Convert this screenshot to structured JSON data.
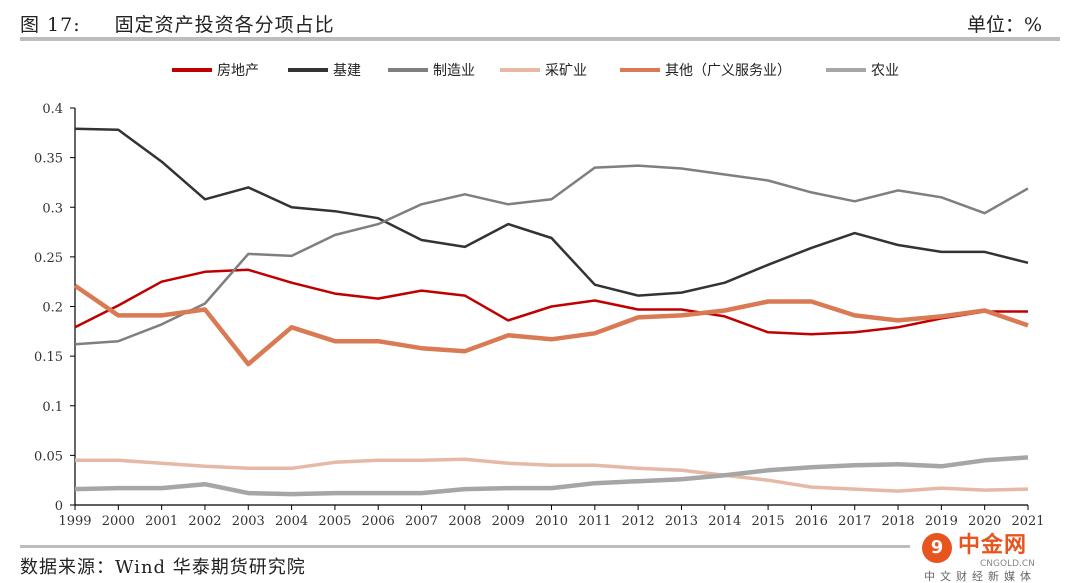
{
  "header": {
    "figure_no": "图 17:",
    "title": "固定资产投资各分项占比",
    "unit": "单位：%"
  },
  "footer": {
    "source": "数据来源：Wind  华泰期货研究院"
  },
  "watermark": {
    "logo_glyph": "9",
    "name": "中金网",
    "site": "CNGOLD.CN",
    "slogan": "中文财经新媒体"
  },
  "chart_data": {
    "type": "line",
    "title": "",
    "xlabel": "",
    "ylabel": "",
    "ylim": [
      0,
      0.4
    ],
    "yticks": [
      "0",
      "0.05",
      "0.1",
      "0.15",
      "0.2",
      "0.25",
      "0.3",
      "0.35",
      "0.4"
    ],
    "ytick_values": [
      0,
      0.05,
      0.1,
      0.15,
      0.2,
      0.25,
      0.3,
      0.35,
      0.4
    ],
    "grid": false,
    "legend_position": "top",
    "x": [
      "1999",
      "2000",
      "2001",
      "2002",
      "2003",
      "2004",
      "2005",
      "2006",
      "2007",
      "2008",
      "2009",
      "2010",
      "2011",
      "2012",
      "2013",
      "2014",
      "2015",
      "2016",
      "2017",
      "2018",
      "2019",
      "2020",
      "2021"
    ],
    "series": [
      {
        "name": "房地产",
        "color": "#c00000",
        "width": 2.5,
        "values": [
          0.179,
          0.201,
          0.225,
          0.235,
          0.237,
          0.224,
          0.213,
          0.208,
          0.216,
          0.211,
          0.186,
          0.2,
          0.206,
          0.197,
          0.197,
          0.19,
          0.174,
          0.172,
          0.174,
          0.179,
          0.188,
          0.195,
          0.195
        ]
      },
      {
        "name": "基建",
        "color": "#333333",
        "width": 2.5,
        "values": [
          0.379,
          0.378,
          0.346,
          0.308,
          0.32,
          0.3,
          0.296,
          0.289,
          0.267,
          0.26,
          0.283,
          0.269,
          0.222,
          0.211,
          0.214,
          0.224,
          0.242,
          0.259,
          0.274,
          0.262,
          0.255,
          0.255,
          0.244
        ]
      },
      {
        "name": "制造业",
        "color": "#7f7f7f",
        "width": 2.5,
        "values": [
          0.162,
          0.165,
          0.182,
          0.203,
          0.253,
          0.251,
          0.272,
          0.283,
          0.303,
          0.313,
          0.303,
          0.308,
          0.34,
          0.342,
          0.339,
          0.333,
          0.327,
          0.315,
          0.306,
          0.317,
          0.31,
          0.294,
          0.319
        ]
      },
      {
        "name": "采矿业",
        "color": "#e6b9a6",
        "width": 3.5,
        "values": [
          0.045,
          0.045,
          0.042,
          0.039,
          0.037,
          0.037,
          0.043,
          0.045,
          0.045,
          0.046,
          0.042,
          0.04,
          0.04,
          0.037,
          0.035,
          0.03,
          0.025,
          0.018,
          0.016,
          0.014,
          0.017,
          0.015,
          0.016
        ]
      },
      {
        "name": "其他（广义服务业）",
        "color": "#d97a55",
        "width": 4.5,
        "values": [
          0.221,
          0.191,
          0.191,
          0.197,
          0.142,
          0.179,
          0.165,
          0.165,
          0.158,
          0.155,
          0.171,
          0.167,
          0.173,
          0.189,
          0.191,
          0.196,
          0.205,
          0.205,
          0.191,
          0.186,
          0.19,
          0.196,
          0.181
        ]
      },
      {
        "name": "农业",
        "color": "#a6a6a6",
        "width": 4.5,
        "values": [
          0.016,
          0.017,
          0.017,
          0.021,
          0.012,
          0.011,
          0.012,
          0.012,
          0.012,
          0.016,
          0.017,
          0.017,
          0.022,
          0.024,
          0.026,
          0.03,
          0.035,
          0.038,
          0.04,
          0.041,
          0.039,
          0.045,
          0.048
        ]
      }
    ]
  }
}
